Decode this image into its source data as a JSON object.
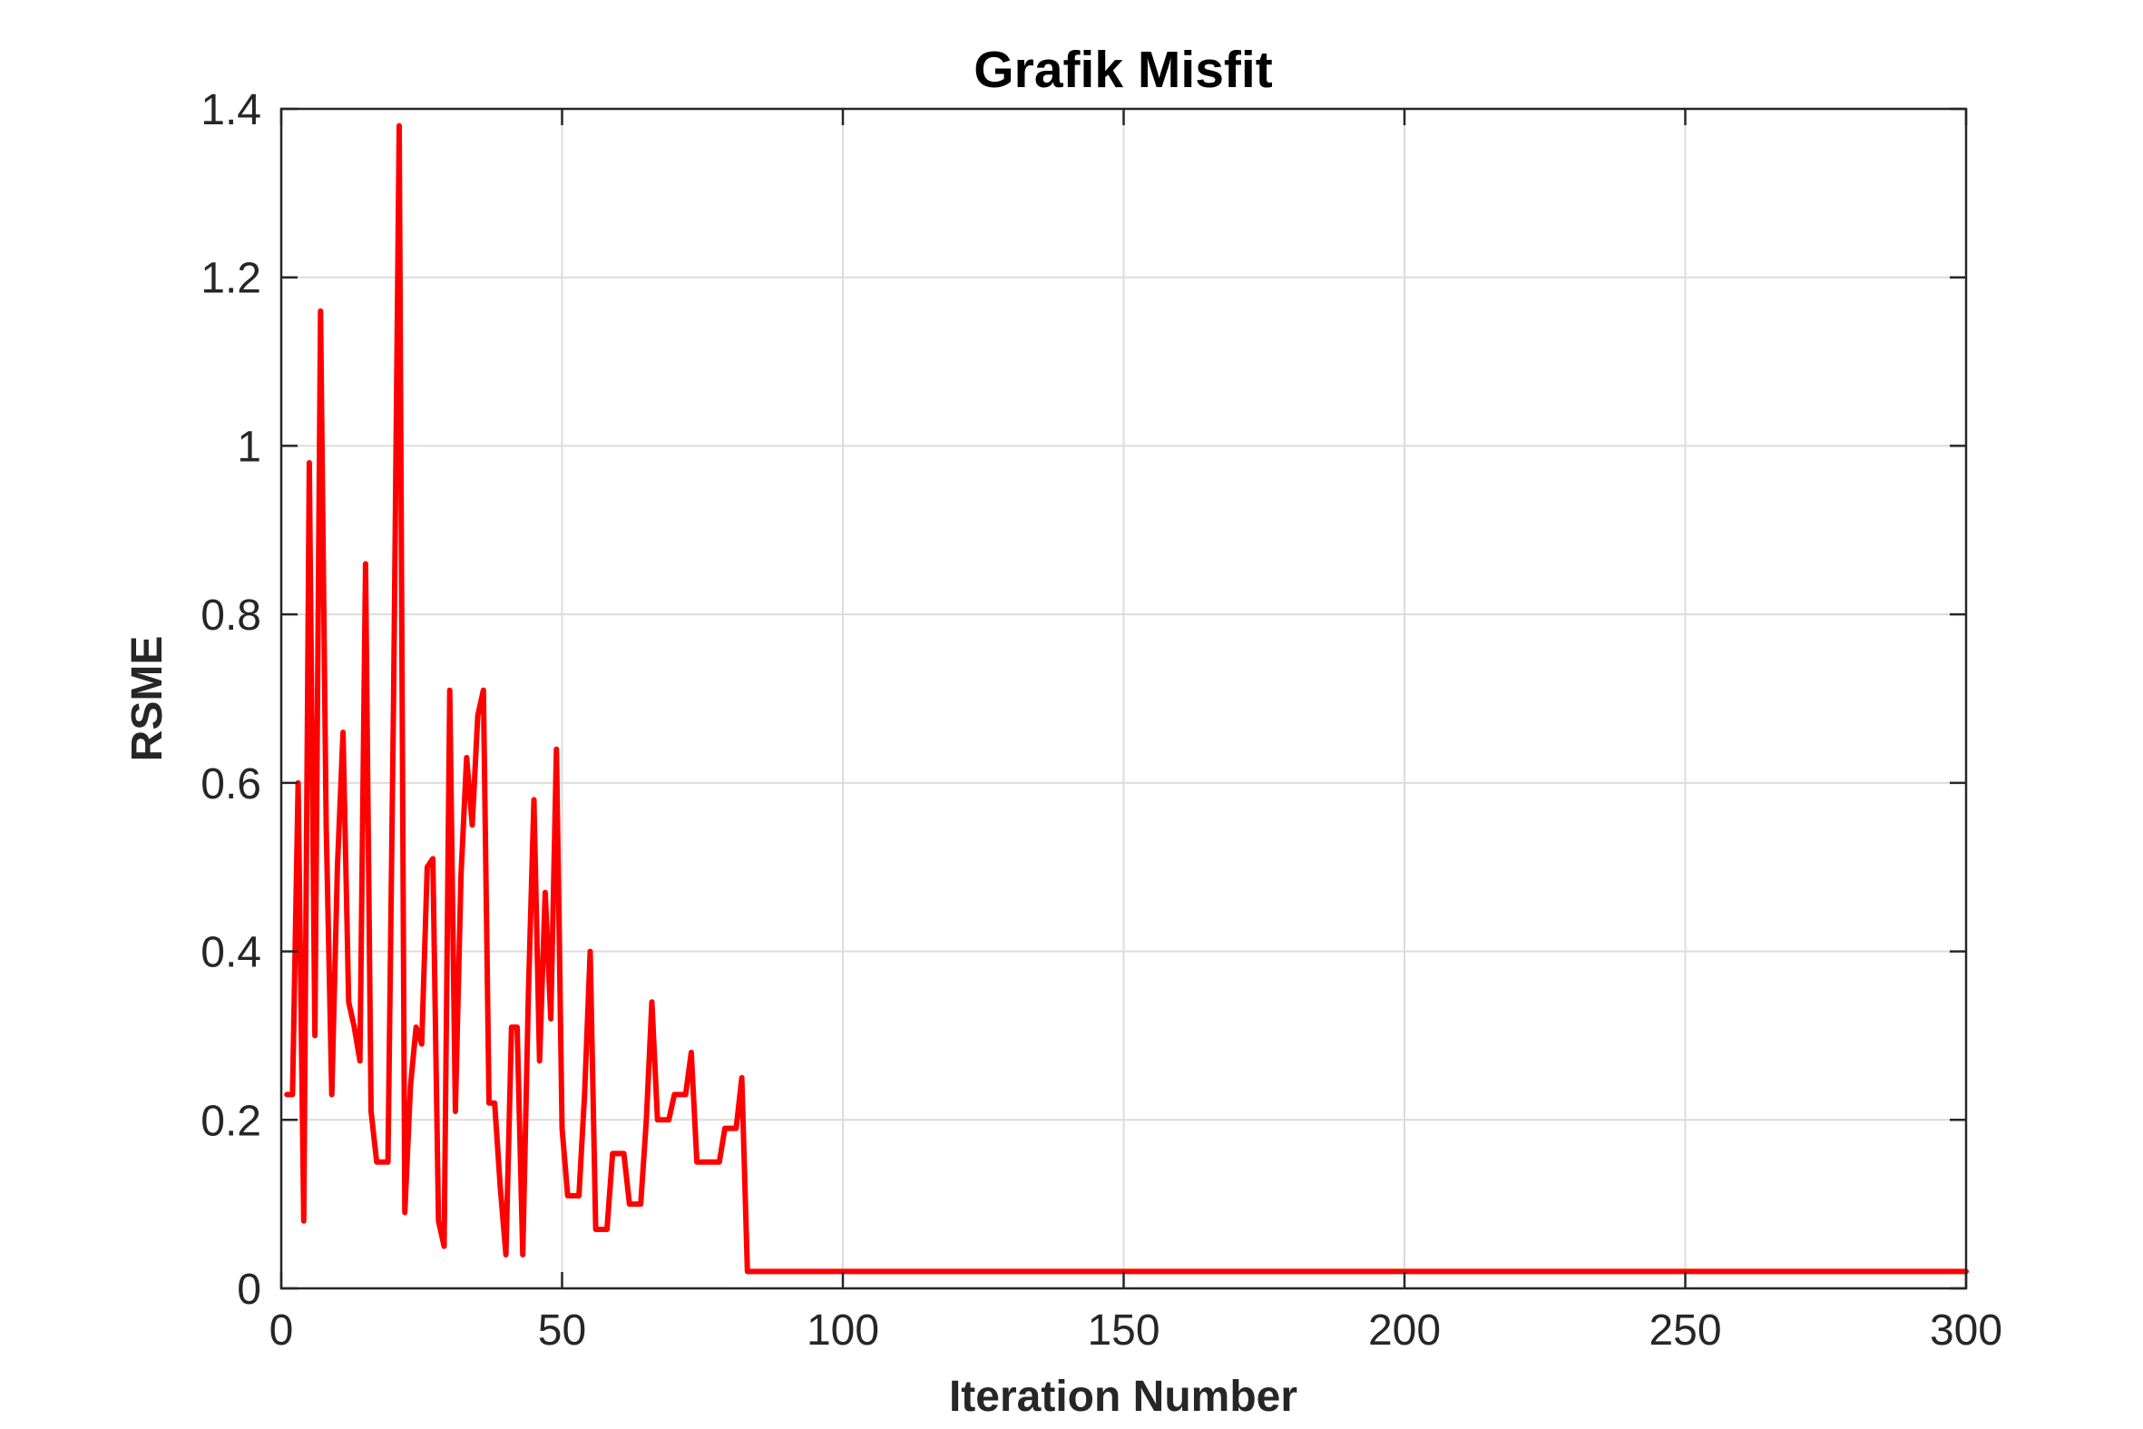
{
  "chart_data": {
    "type": "line",
    "title": "Grafik Misfit",
    "xlabel": "Iteration Number",
    "ylabel": "RSME",
    "xlim": [
      0,
      300
    ],
    "ylim": [
      0,
      1.4
    ],
    "x_ticks": [
      0,
      50,
      100,
      150,
      200,
      250,
      300
    ],
    "y_ticks": [
      0,
      0.2,
      0.4,
      0.6,
      0.8,
      1,
      1.2,
      1.4
    ],
    "x_tick_labels": [
      "0",
      "50",
      "100",
      "150",
      "200",
      "250",
      "300"
    ],
    "y_tick_labels": [
      "0",
      "0.2",
      "0.4",
      "0.6",
      "0.8",
      "1",
      "1.2",
      "1.4"
    ],
    "grid": true,
    "series": [
      {
        "color": "#ff0000",
        "x": [
          1,
          2,
          3,
          4,
          5,
          6,
          7,
          8,
          9,
          10,
          11,
          12,
          13,
          14,
          15,
          16,
          17,
          18,
          19,
          20,
          21,
          22,
          23,
          24,
          25,
          26,
          27,
          28,
          29,
          30,
          31,
          32,
          33,
          34,
          35,
          36,
          37,
          38,
          39,
          40,
          41,
          42,
          43,
          44,
          45,
          46,
          47,
          48,
          49,
          50,
          51,
          52,
          53,
          54,
          55,
          56,
          57,
          58,
          59,
          60,
          61,
          62,
          63,
          64,
          65,
          66,
          67,
          68,
          69,
          70,
          71,
          72,
          73,
          74,
          75,
          76,
          77,
          78,
          79,
          80,
          81,
          82,
          83,
          300
        ],
        "y": [
          0.23,
          0.23,
          0.6,
          0.08,
          0.98,
          0.3,
          1.16,
          0.55,
          0.23,
          0.5,
          0.66,
          0.34,
          0.31,
          0.27,
          0.86,
          0.21,
          0.15,
          0.15,
          0.15,
          0.7,
          1.38,
          0.09,
          0.24,
          0.31,
          0.29,
          0.5,
          0.51,
          0.08,
          0.05,
          0.71,
          0.21,
          0.49,
          0.63,
          0.55,
          0.68,
          0.71,
          0.22,
          0.22,
          0.12,
          0.04,
          0.31,
          0.31,
          0.04,
          0.35,
          0.58,
          0.27,
          0.47,
          0.32,
          0.64,
          0.19,
          0.11,
          0.11,
          0.11,
          0.23,
          0.4,
          0.07,
          0.07,
          0.07,
          0.16,
          0.16,
          0.16,
          0.1,
          0.1,
          0.1,
          0.2,
          0.34,
          0.2,
          0.2,
          0.2,
          0.23,
          0.23,
          0.23,
          0.28,
          0.15,
          0.15,
          0.15,
          0.15,
          0.15,
          0.19,
          0.19,
          0.19,
          0.25,
          0.02,
          0.02
        ]
      }
    ]
  }
}
